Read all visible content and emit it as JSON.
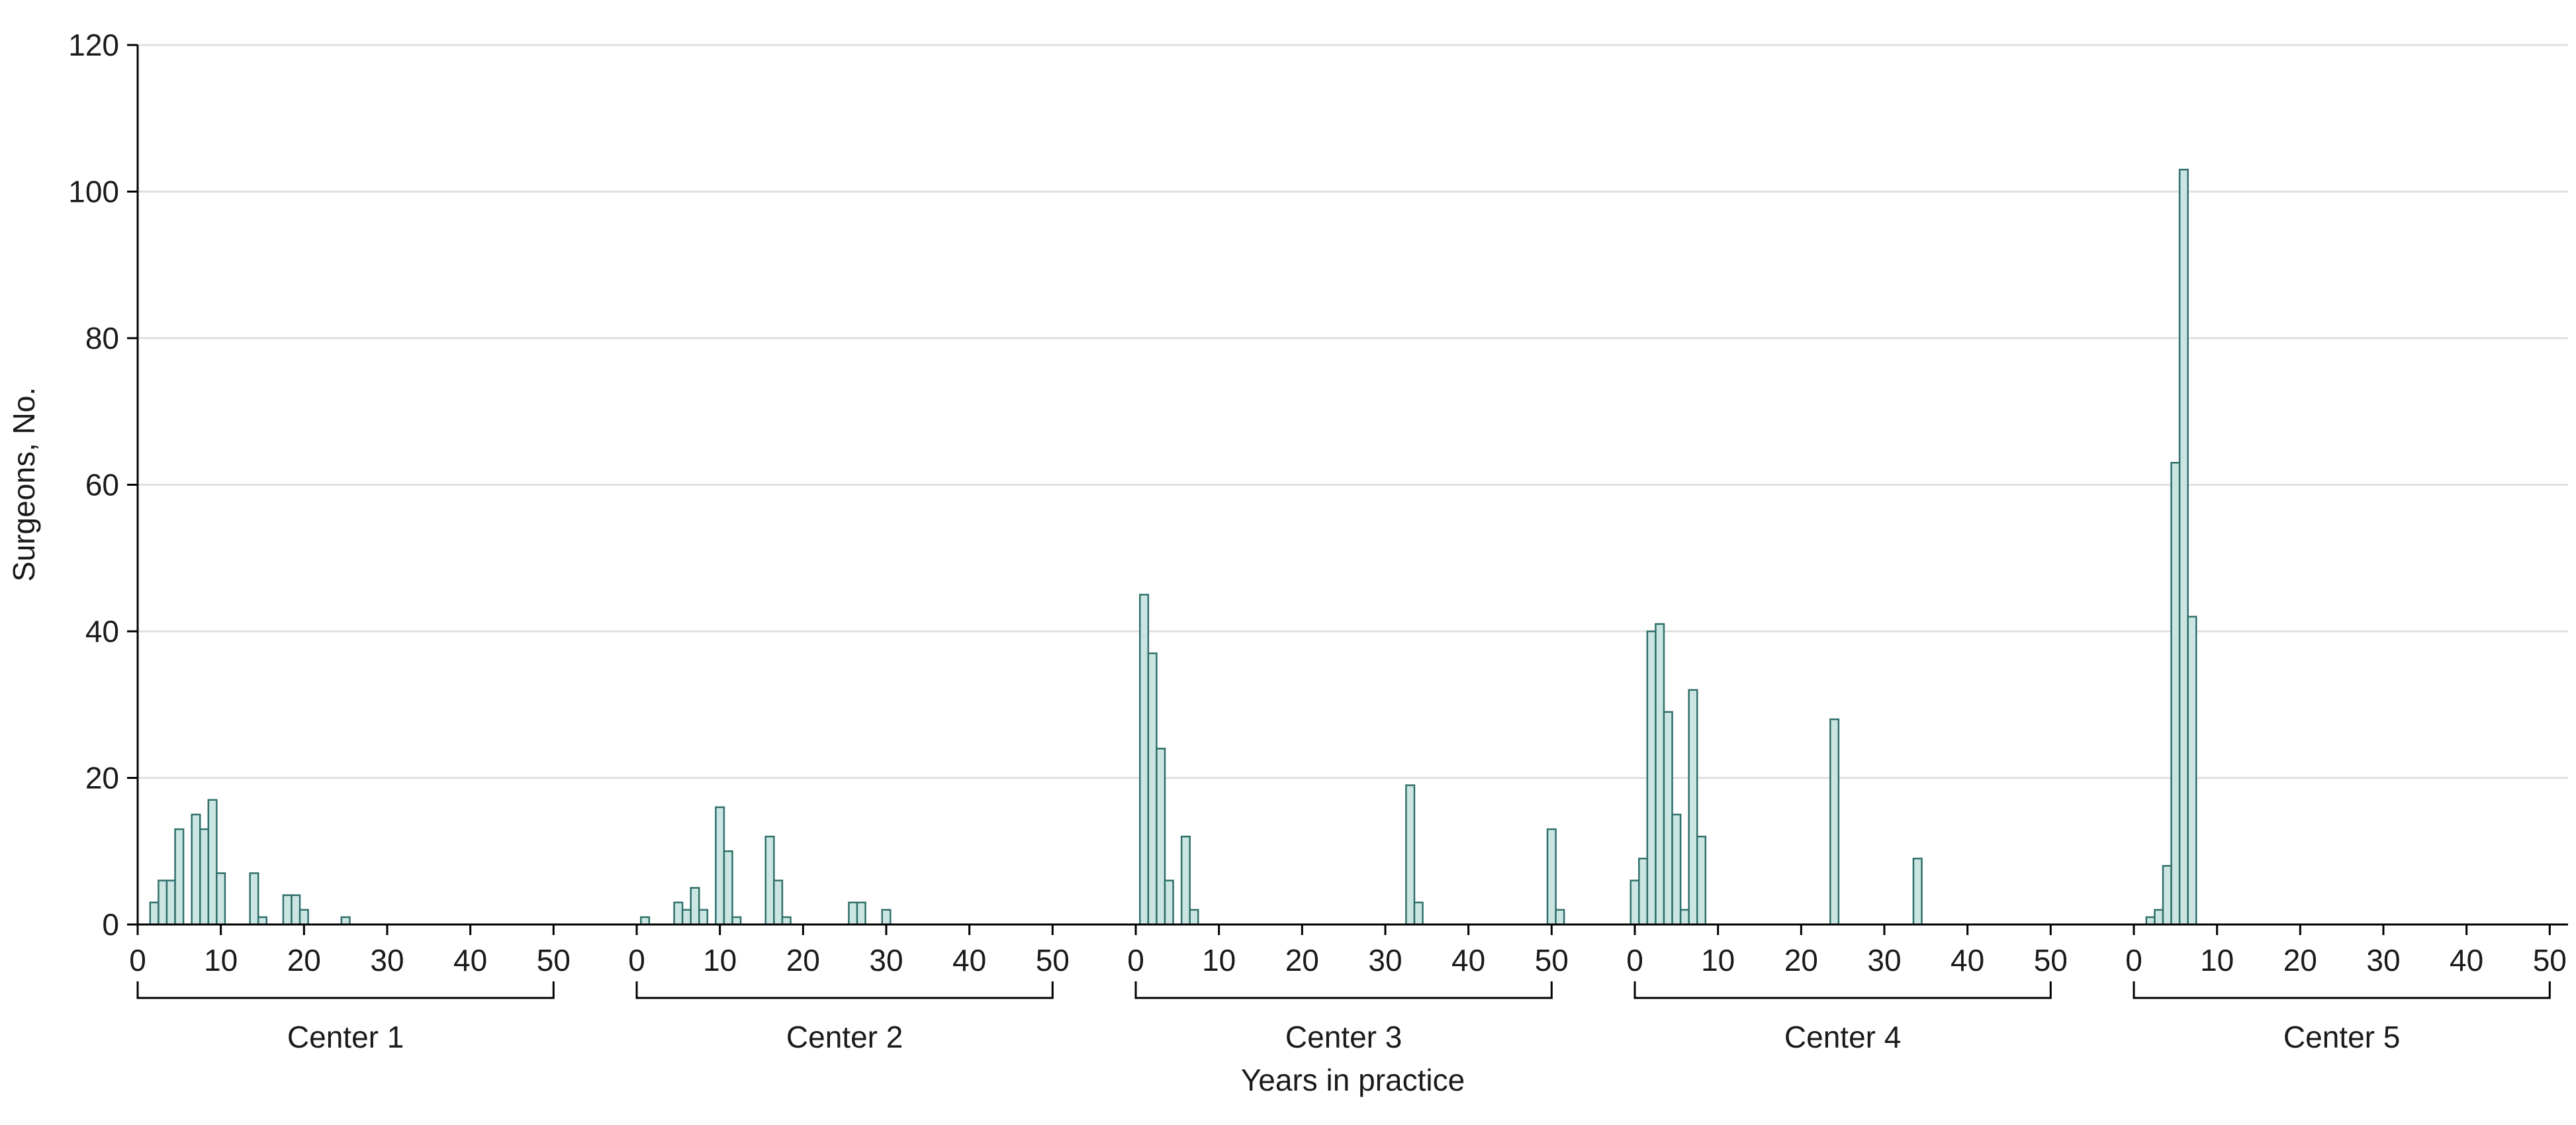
{
  "chart_data": {
    "type": "bar",
    "subtype": "multi-panel-histogram",
    "title": "",
    "ylabel": "Surgeons, No.",
    "xlabel": "Years in practice",
    "ylim": [
      0,
      120
    ],
    "yticks": [
      0,
      20,
      40,
      60,
      80,
      100,
      120
    ],
    "xticks_per_panel": [
      0,
      10,
      20,
      30,
      40,
      50
    ],
    "grid": "horizontal",
    "legend": "none",
    "colors": {
      "bar_fill": "#cbe6e2",
      "bar_stroke": "#2f6f6b",
      "gridline": "#e0e0e0",
      "axis": "#000000",
      "text": "#1a1a1a"
    },
    "panels": [
      {
        "label": "Center 1",
        "bars": [
          {
            "year": 2,
            "count": 3
          },
          {
            "year": 3,
            "count": 6
          },
          {
            "year": 4,
            "count": 6
          },
          {
            "year": 5,
            "count": 13
          },
          {
            "year": 7,
            "count": 15
          },
          {
            "year": 8,
            "count": 13
          },
          {
            "year": 9,
            "count": 17
          },
          {
            "year": 10,
            "count": 7
          },
          {
            "year": 14,
            "count": 7
          },
          {
            "year": 15,
            "count": 1
          },
          {
            "year": 18,
            "count": 4
          },
          {
            "year": 19,
            "count": 4
          },
          {
            "year": 20,
            "count": 2
          },
          {
            "year": 25,
            "count": 1
          }
        ]
      },
      {
        "label": "Center 2",
        "bars": [
          {
            "year": 1,
            "count": 1
          },
          {
            "year": 5,
            "count": 3
          },
          {
            "year": 6,
            "count": 2
          },
          {
            "year": 7,
            "count": 5
          },
          {
            "year": 8,
            "count": 2
          },
          {
            "year": 10,
            "count": 16
          },
          {
            "year": 11,
            "count": 10
          },
          {
            "year": 12,
            "count": 1
          },
          {
            "year": 16,
            "count": 12
          },
          {
            "year": 17,
            "count": 6
          },
          {
            "year": 18,
            "count": 1
          },
          {
            "year": 26,
            "count": 3
          },
          {
            "year": 27,
            "count": 3
          },
          {
            "year": 30,
            "count": 2
          }
        ]
      },
      {
        "label": "Center 3",
        "bars": [
          {
            "year": 1,
            "count": 45
          },
          {
            "year": 2,
            "count": 37
          },
          {
            "year": 3,
            "count": 24
          },
          {
            "year": 4,
            "count": 6
          },
          {
            "year": 6,
            "count": 12
          },
          {
            "year": 7,
            "count": 2
          },
          {
            "year": 33,
            "count": 19
          },
          {
            "year": 34,
            "count": 3
          },
          {
            "year": 50,
            "count": 13
          },
          {
            "year": 51,
            "count": 2
          }
        ]
      },
      {
        "label": "Center 4",
        "bars": [
          {
            "year": 0,
            "count": 6
          },
          {
            "year": 1,
            "count": 9
          },
          {
            "year": 2,
            "count": 40
          },
          {
            "year": 3,
            "count": 41
          },
          {
            "year": 4,
            "count": 29
          },
          {
            "year": 5,
            "count": 15
          },
          {
            "year": 6,
            "count": 2
          },
          {
            "year": 7,
            "count": 32
          },
          {
            "year": 8,
            "count": 12
          },
          {
            "year": 24,
            "count": 28
          },
          {
            "year": 34,
            "count": 9
          }
        ]
      },
      {
        "label": "Center 5",
        "bars": [
          {
            "year": 2,
            "count": 1
          },
          {
            "year": 3,
            "count": 2
          },
          {
            "year": 4,
            "count": 8
          },
          {
            "year": 5,
            "count": 63
          },
          {
            "year": 6,
            "count": 103
          },
          {
            "year": 7,
            "count": 42
          }
        ]
      }
    ]
  }
}
